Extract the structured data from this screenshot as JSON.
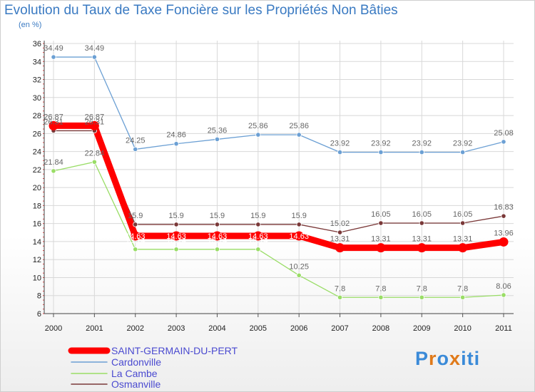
{
  "title": "Evolution du Taux de Taxe Foncière sur les Propriétés Non Bâties",
  "unit": "(en %)",
  "logo": {
    "text": "Proxiti",
    "letters": [
      "P",
      "r",
      "o",
      "x",
      "i",
      "t",
      "i"
    ],
    "colors": [
      "#3a8ad8",
      "#e07a1a",
      "#3a8ad8",
      "#e07a1a",
      "#3a8ad8",
      "#3a8ad8",
      "#3a8ad8"
    ]
  },
  "chart_data": {
    "type": "line",
    "title": "Evolution du Taux de Taxe Foncière sur les Propriétés Non Bâties",
    "ylabel": "(en %)",
    "xlabel": "",
    "ylim": [
      6,
      36
    ],
    "yticks": [
      6,
      8,
      10,
      12,
      14,
      16,
      18,
      20,
      22,
      24,
      26,
      28,
      30,
      32,
      34,
      36
    ],
    "x": [
      "2000",
      "2001",
      "2002",
      "2003",
      "2004",
      "2005",
      "2006",
      "2007",
      "2008",
      "2009",
      "2010",
      "2011"
    ],
    "series": [
      {
        "name": "SAINT-GERMAIN-DU-PERT",
        "color": "#ff0000",
        "values": [
          26.87,
          26.87,
          14.63,
          14.63,
          14.63,
          14.63,
          14.63,
          13.31,
          13.31,
          13.31,
          13.31,
          13.96
        ],
        "labels": [
          "26.87",
          "26.87",
          "14.63",
          "14.63",
          "14.63",
          "14.63",
          "14.63",
          "13.31",
          "13.31",
          "13.31",
          "13.31",
          "13.96"
        ]
      },
      {
        "name": "Cardonville",
        "color": "#6ca0d4",
        "values": [
          34.49,
          34.49,
          24.25,
          24.86,
          25.36,
          25.86,
          25.86,
          23.92,
          23.92,
          23.92,
          23.92,
          25.08
        ],
        "labels": [
          "34.49",
          "34.49",
          "24.25",
          "24.86",
          "25.36",
          "25.86",
          "25.86",
          "23.92",
          "23.92",
          "23.92",
          "23.92",
          "25.08"
        ]
      },
      {
        "name": "La Cambe",
        "color": "#99dd66",
        "values": [
          21.84,
          22.84,
          13.14,
          13.14,
          13.14,
          13.14,
          10.25,
          7.8,
          7.8,
          7.8,
          7.8,
          8.06
        ],
        "labels": [
          "21.84",
          "22.84",
          "13.14",
          "13.14",
          "13.14",
          "13.14",
          "10.25",
          "7.8",
          "7.8",
          "7.8",
          "7.8",
          "8.06"
        ]
      },
      {
        "name": "Osmanville",
        "color": "#7a3838",
        "values": [
          26.31,
          26.31,
          15.9,
          15.9,
          15.9,
          15.9,
          15.9,
          15.02,
          16.05,
          16.05,
          16.05,
          16.83
        ],
        "labels": [
          "26.31",
          "26.31",
          "15.9",
          "15.9",
          "15.9",
          "15.9",
          "15.9",
          "15.02",
          "16.05",
          "16.05",
          "16.05",
          "16.83"
        ]
      }
    ]
  }
}
